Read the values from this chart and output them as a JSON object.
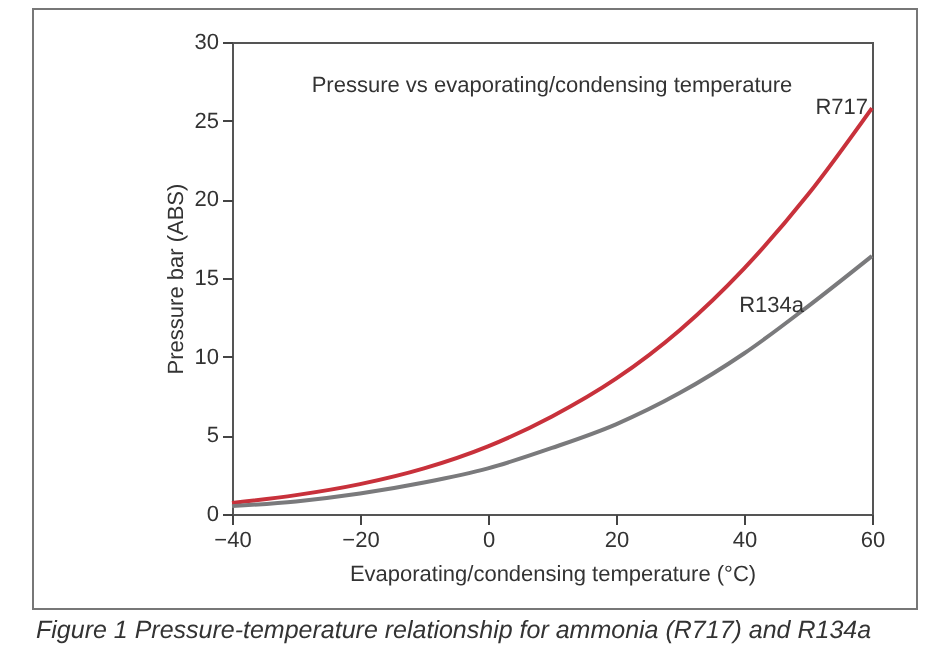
{
  "chart_data": {
    "type": "line",
    "title": "Pressure vs evaporating/condensing temperature",
    "xlabel": "Evaporating/condensing temperature (°C)",
    "ylabel": "Pressure bar (ABS)",
    "x": [
      -40,
      -30,
      -20,
      -10,
      0,
      10,
      20,
      30,
      40,
      50,
      60
    ],
    "series": [
      {
        "name": "R717",
        "color": "#c8313b",
        "values": [
          0.7,
          1.2,
          1.9,
          2.9,
          4.3,
          6.2,
          8.6,
          11.7,
          15.6,
          20.3,
          25.8
        ]
      },
      {
        "name": "R134a",
        "color": "#7a7a7c",
        "values": [
          0.5,
          0.8,
          1.3,
          2.0,
          2.9,
          4.2,
          5.7,
          7.7,
          10.2,
          13.2,
          16.4
        ]
      }
    ],
    "xlim": [
      -40,
      60
    ],
    "xticks": [
      -40,
      -20,
      0,
      20,
      40,
      60
    ],
    "ylim": [
      0,
      30
    ],
    "yticks": [
      0,
      5,
      10,
      15,
      20,
      25,
      30
    ],
    "grid": false,
    "legend": false,
    "marker": "none",
    "line_style": "solid",
    "annotations": [
      "Figure 1  Pressure-temperature relationship for ammonia (R717) and R134a"
    ]
  }
}
